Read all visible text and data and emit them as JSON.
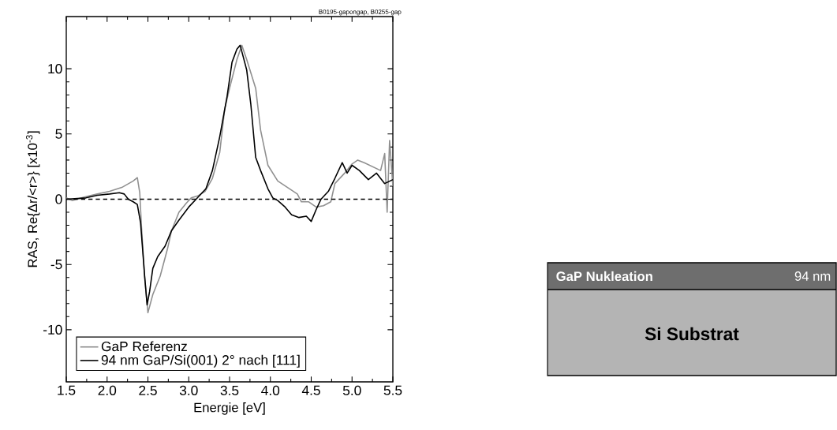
{
  "chart_data": [
    {
      "type": "line",
      "xlabel": "Energie [eV]",
      "ylabel": "RAS, Re{Δr/<r>} [x10$^{-3}$]",
      "annotations": [
        "B0195-gapongap, B0255-gap"
      ],
      "xlim": [
        1.5,
        5.5
      ],
      "ylim": [
        -14,
        14
      ],
      "xticks": [
        1.5,
        {
          "value": 2,
          "label": "2.0"
        },
        2.5,
        {
          "value": 3,
          "label": "3.0"
        },
        3.5,
        {
          "value": 4,
          "label": "4.0"
        },
        4.5,
        {
          "value": 5,
          "label": "5.0"
        },
        5.5
      ],
      "yticks": [
        -10,
        -5,
        0,
        5,
        10
      ],
      "ref_lines": [
        {
          "axis": "y",
          "value": 0,
          "color": "#000000",
          "line_style": "dashed"
        }
      ],
      "legend": "bottom left",
      "marker": "none",
      "line_style": "solid",
      "series": [
        {
          "name": "GaP Referenz",
          "color": "#909090",
          "x": [
            1.5,
            1.57,
            1.74,
            1.88,
            2.03,
            2.18,
            2.32,
            2.37,
            2.4,
            2.42,
            2.46,
            2.5,
            2.56,
            2.65,
            2.74,
            2.79,
            2.88,
            2.97,
            3.03,
            3.11,
            3.2,
            3.29,
            3.38,
            3.44,
            3.5,
            3.59,
            3.65,
            3.71,
            3.82,
            3.88,
            3.97,
            4.09,
            4.21,
            4.33,
            4.38,
            4.47,
            4.56,
            4.65,
            4.74,
            4.79,
            4.91,
            5.0,
            5.07,
            5.15,
            5.25,
            5.35,
            5.4,
            5.43,
            5.46,
            5.5
          ],
          "values": [
            0.1,
            -0.1,
            0.2,
            0.4,
            0.6,
            0.9,
            1.4,
            1.65,
            0.5,
            -2,
            -6,
            -8.7,
            -7.3,
            -5.9,
            -3.8,
            -2.4,
            -1.0,
            -0.3,
            0.1,
            0.25,
            0.6,
            1.6,
            3.6,
            6.9,
            8.5,
            10.7,
            11.8,
            10.7,
            8.5,
            5.3,
            2.6,
            1.4,
            0.9,
            0.4,
            -0.2,
            -0.2,
            -0.6,
            -0.5,
            -0.2,
            1.2,
            2.0,
            2.7,
            3.0,
            2.8,
            2.5,
            2.2,
            3.5,
            -1.0,
            4.5,
            1.0
          ]
        },
        {
          "name": "94 nm GaP/Si(001) 2° nach [111]",
          "color": "#000000",
          "x": [
            1.5,
            1.74,
            1.88,
            2.03,
            2.15,
            2.21,
            2.26,
            2.32,
            2.37,
            2.41,
            2.46,
            2.49,
            2.52,
            2.56,
            2.62,
            2.71,
            2.79,
            2.88,
            3.0,
            3.09,
            3.21,
            3.29,
            3.38,
            3.47,
            3.53,
            3.59,
            3.63,
            3.71,
            3.76,
            3.82,
            3.88,
            3.97,
            4.03,
            4.09,
            4.18,
            4.26,
            4.35,
            4.44,
            4.5,
            4.56,
            4.62,
            4.71,
            4.79,
            4.88,
            4.94,
            5.0,
            5.09,
            5.2,
            5.3,
            5.4,
            5.5
          ],
          "values": [
            0,
            0.1,
            0.3,
            0.4,
            0.5,
            0.4,
            0,
            -0.2,
            -0.4,
            -1.8,
            -5.9,
            -8.1,
            -7.1,
            -5.3,
            -4.4,
            -3.6,
            -2.4,
            -1.6,
            -0.6,
            0,
            0.8,
            2.2,
            4.8,
            7.9,
            10.5,
            11.5,
            11.8,
            9.9,
            7.3,
            3.2,
            2.2,
            0.8,
            0.1,
            -0.1,
            -0.6,
            -1.2,
            -1.4,
            -1.3,
            -1.7,
            -0.8,
            0,
            0.6,
            1.6,
            2.8,
            2.0,
            2.6,
            2.2,
            1.5,
            2.0,
            1.2,
            1.5
          ]
        }
      ]
    },
    {
      "type": "other",
      "annotations": [
        "GaP Nukleation",
        "94 nm",
        "Si Substrat"
      ]
    }
  ]
}
